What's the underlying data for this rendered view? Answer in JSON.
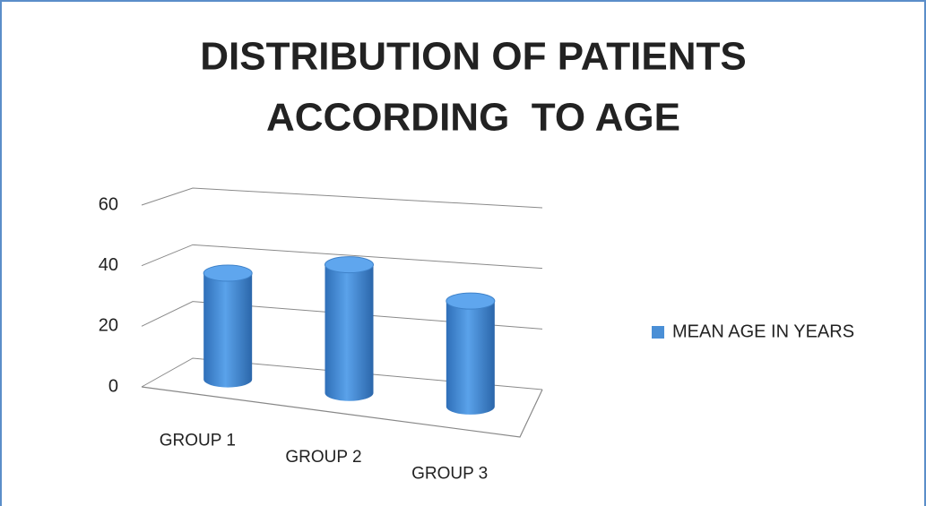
{
  "chart_data": {
    "type": "bar3d",
    "title": [
      "DISTRIBUTION OF PATIENTS",
      "ACCORDING  TO AGE"
    ],
    "categories": [
      "GROUP 1",
      "GROUP 2",
      "GROUP 3"
    ],
    "series": [
      {
        "name": "MEAN AGE IN YEARS",
        "color": "#4a8fd6",
        "values": [
          36,
          43,
          35
        ]
      }
    ],
    "ylim": [
      0,
      60
    ],
    "yticks": [
      0,
      20,
      40,
      60
    ],
    "grid": true,
    "legend": "right"
  }
}
